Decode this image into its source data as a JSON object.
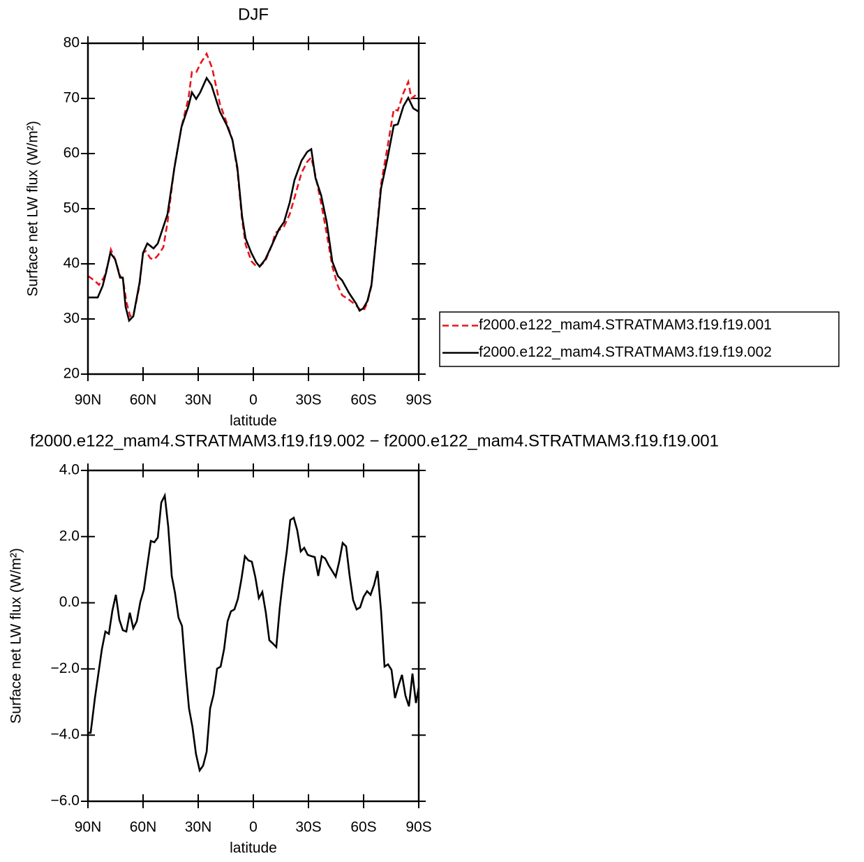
{
  "chart_data": [
    {
      "type": "line",
      "title": "DJF",
      "xlabel": "latitude",
      "ylabel": "Surface net LW flux (W/m²)",
      "xlim": [
        90,
        -90
      ],
      "ylim": [
        20,
        80
      ],
      "xticks": [
        {
          "value": 90,
          "label": "90N"
        },
        {
          "value": 60,
          "label": "60N"
        },
        {
          "value": 30,
          "label": "30N"
        },
        0,
        {
          "value": -30,
          "label": "30S"
        },
        {
          "value": -60,
          "label": "60S"
        },
        {
          "value": -90,
          "label": "90S"
        }
      ],
      "yticks": [
        20,
        30,
        40,
        50,
        60,
        70,
        80
      ],
      "legend": "right",
      "series": [
        {
          "name": "f2000.e122_mam4.STRATMAM3.f19.f19.001",
          "color": "#e8141c",
          "line_style": "dashed",
          "x": [
            90,
            86.6,
            84,
            81.2,
            79,
            77.5,
            75.2,
            72.5,
            71,
            69,
            67,
            65,
            62,
            60,
            58.5,
            56,
            54,
            52,
            49,
            46.7,
            43,
            39,
            35.3,
            33.4,
            31,
            28.5,
            25.4,
            22.4,
            18.2,
            14.4,
            11.4,
            8.7,
            6.1,
            4.2,
            1.1,
            -1.5,
            -3.4,
            -6.5,
            -10.2,
            -12,
            -16.7,
            -19.8,
            -22.4,
            -26.2,
            -29.3,
            -31.5,
            -33.8,
            -36.9,
            -39.9,
            -43,
            -46,
            -48.3,
            -52.1,
            -55.9,
            -58.5,
            -60.5,
            -62,
            -64.3,
            -67.3,
            -69.5,
            -72.9,
            -76.4,
            -78.6,
            -81.7,
            -84.3,
            -86,
            -88,
            -90
          ],
          "values": [
            37.8,
            37,
            36.2,
            37.6,
            40,
            42.6,
            40.8,
            37.8,
            37.3,
            33,
            30.5,
            31,
            36,
            42,
            42.3,
            41,
            40.8,
            41.5,
            43,
            47.5,
            57.5,
            65,
            70,
            74.8,
            74.8,
            76.5,
            78.1,
            75.5,
            69,
            65.5,
            62.5,
            57,
            48,
            43.5,
            40.5,
            39.6,
            39.5,
            40.5,
            43.5,
            45.6,
            46.8,
            49,
            52,
            56.5,
            58.5,
            59.3,
            56,
            51,
            45.5,
            39.5,
            36,
            34.3,
            33.5,
            32.5,
            31.5,
            31.8,
            33,
            36,
            46.5,
            54.5,
            61,
            68,
            67.8,
            71,
            73,
            70,
            70.5,
            69.8
          ]
        },
        {
          "name": "f2000.e122_mam4.STRATMAM3.f19.f19.002",
          "color": "#000000",
          "line_style": "solid",
          "x": [
            90,
            84.7,
            82,
            80.1,
            77.8,
            75.2,
            72.5,
            71,
            69.5,
            67.6,
            65.3,
            61.9,
            60,
            57.7,
            54.3,
            52,
            46.7,
            42.9,
            39.1,
            35.3,
            33.4,
            31.1,
            28.9,
            25.4,
            22.8,
            18.2,
            14.4,
            11.4,
            8.7,
            6.1,
            4.2,
            1.1,
            -1.5,
            -3.4,
            -6.5,
            -10.2,
            -14,
            -16.7,
            -19.8,
            -22.4,
            -26.2,
            -29.3,
            -31.5,
            -33.8,
            -36.9,
            -39.9,
            -43,
            -46,
            -48.3,
            -52.1,
            -55.9,
            -57.8,
            -59.7,
            -62,
            -64.3,
            -67.3,
            -69.5,
            -72.9,
            -76.4,
            -78.6,
            -81.7,
            -84.3,
            -87,
            -90
          ],
          "values": [
            33.9,
            33.9,
            36,
            38.5,
            42,
            40.8,
            37.5,
            37.5,
            32.2,
            29.7,
            30.5,
            36.6,
            42,
            43.7,
            42.8,
            43.7,
            49,
            57.5,
            64.8,
            68.6,
            71.1,
            69.9,
            71.1,
            73.7,
            72.4,
            67.6,
            65.1,
            62.5,
            57.5,
            48.6,
            44.6,
            42,
            40.3,
            39.5,
            40.8,
            43.5,
            46.3,
            47.6,
            51.1,
            55.2,
            58.7,
            60.3,
            60.8,
            55.6,
            52.4,
            47.6,
            40.4,
            37.8,
            37,
            34.7,
            32.8,
            31.5,
            31.9,
            33.2,
            36.2,
            46.1,
            53.7,
            59,
            65.1,
            65.3,
            68.6,
            70.1,
            68.2,
            67.6
          ]
        }
      ]
    },
    {
      "type": "line",
      "title": "f2000.e122_mam4.STRATMAM3.f19.f19.002 − f2000.e122_mam4.STRATMAM3.f19.f19.001",
      "xlabel": "latitude",
      "ylabel": "Surface net LW flux (W/m²)",
      "xlim": [
        90,
        -90
      ],
      "ylim": [
        -6,
        4
      ],
      "xticks": [
        {
          "value": 90,
          "label": "90N"
        },
        {
          "value": 60,
          "label": "60N"
        },
        {
          "value": 30,
          "label": "30N"
        },
        0,
        {
          "value": -30,
          "label": "30S"
        },
        {
          "value": -60,
          "label": "60S"
        },
        {
          "value": -90,
          "label": "90S"
        }
      ],
      "yticks": [
        {
          "value": -6,
          "label": "−6.0"
        },
        {
          "value": -4,
          "label": "−4.0"
        },
        {
          "value": -2,
          "label": "−2.0"
        },
        {
          "value": 0,
          "label": "0.0"
        },
        {
          "value": 2,
          "label": "2.0"
        },
        {
          "value": 4,
          "label": "4.0"
        }
      ],
      "color": "#000000",
      "x": [
        90,
        88.5,
        86.2,
        82.4,
        80.5,
        78.6,
        76.7,
        74.8,
        72.9,
        71,
        69.1,
        67.2,
        65.3,
        63.4,
        61.5,
        59.6,
        57.7,
        55.8,
        53.9,
        52,
        50.1,
        48.2,
        46.3,
        44.4,
        42.6,
        40.7,
        38.8,
        36.9,
        35,
        33.1,
        31.2,
        29.2,
        27.3,
        25.4,
        23.5,
        21.6,
        19.7,
        17.8,
        15.9,
        14,
        12.2,
        10.3,
        8.4,
        6.5,
        4.6,
        2.7,
        0.8,
        -1.1,
        -3,
        -4.9,
        -6.8,
        -8.7,
        -10.6,
        -12.5,
        -14.4,
        -16.3,
        -18.2,
        -20.1,
        -22,
        -23.9,
        -25.8,
        -27.7,
        -29.6,
        -31.5,
        -33.4,
        -35.3,
        -37.2,
        -39.1,
        -41,
        -42.9,
        -44.8,
        -46.7,
        -48.6,
        -50.5,
        -52.4,
        -54.3,
        -56.2,
        -58.1,
        -60,
        -61.9,
        -63.8,
        -65.7,
        -67.6,
        -69.5,
        -71.4,
        -73.3,
        -75.2,
        -77.1,
        -79,
        -80.9,
        -82.8,
        -84.7,
        -86.6,
        -88.5,
        -90
      ],
      "values": [
        -3.93,
        -3.93,
        -2.88,
        -1.4,
        -0.87,
        -0.94,
        -0.24,
        0.24,
        -0.51,
        -0.83,
        -0.87,
        -0.3,
        -0.77,
        -0.56,
        0.03,
        0.39,
        1.13,
        1.87,
        1.83,
        1.97,
        3.03,
        3.24,
        2.29,
        0.81,
        0.29,
        -0.45,
        -0.7,
        -2.03,
        -3.19,
        -3.76,
        -4.57,
        -5.07,
        -4.92,
        -4.5,
        -3.19,
        -2.77,
        -1.99,
        -1.93,
        -1.4,
        -0.56,
        -0.26,
        -0.2,
        0.12,
        0.71,
        1.41,
        1.28,
        1.24,
        0.77,
        0.14,
        0.33,
        -0.3,
        -1.13,
        -1.23,
        -1.34,
        -0.14,
        0.77,
        1.55,
        2.5,
        2.57,
        2.19,
        1.55,
        1.66,
        1.45,
        1.41,
        1.38,
        0.81,
        1.41,
        1.34,
        1.13,
        0.96,
        0.79,
        1.24,
        1.81,
        1.7,
        0.81,
        0.08,
        -0.2,
        -0.14,
        0.18,
        0.35,
        0.24,
        0.54,
        0.96,
        -0.24,
        -1.93,
        -1.86,
        -2.03,
        -2.88,
        -2.5,
        -2.18,
        -2.81,
        -3.13,
        -2.14,
        -3.03,
        -2.56
      ]
    }
  ]
}
